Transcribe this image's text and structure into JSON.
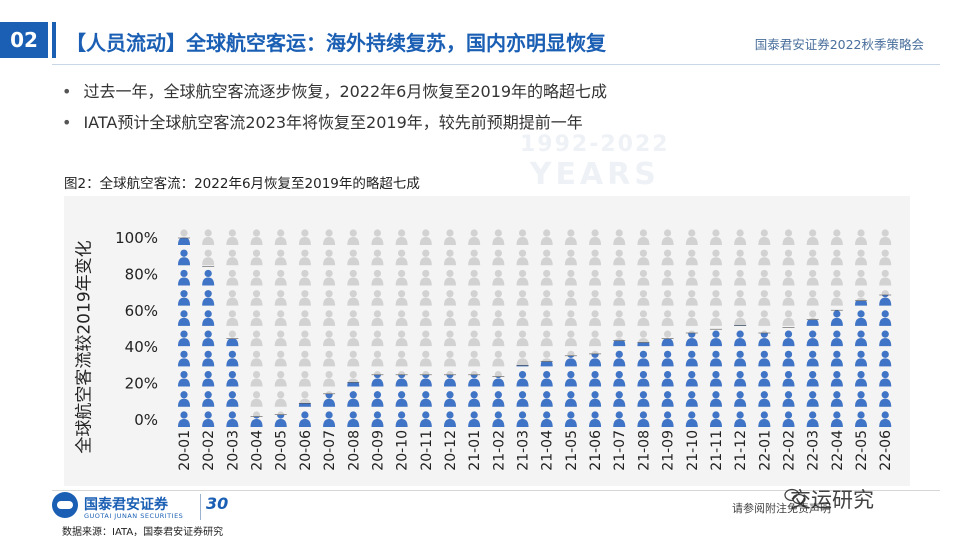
{
  "header": {
    "section_number": "02",
    "title": "【人员流动】全球航空客运：海外持续复苏，国内亦明显恢复",
    "conference": "国泰君安证券2022秋季策略会"
  },
  "bullets": [
    "过去一年，全球航空客流逐步恢复，2022年6月恢复至2019年的略超七成",
    "IATA预计全球航空客流2023年将恢复至2019年，较先前预期提前一年"
  ],
  "watermark": {
    "line1": "1992-2022",
    "line2": "YEARS"
  },
  "figure_caption": "图2：全球航空客流：2022年6月恢复至2019年的略超七成",
  "chart_data": {
    "type": "bar",
    "style": "pictograph (person icons, filled = recovered share, grey = remainder)",
    "categories": [
      "20-01",
      "20-02",
      "20-03",
      "20-04",
      "20-05",
      "20-06",
      "20-07",
      "20-08",
      "20-09",
      "20-10",
      "20-11",
      "20-12",
      "21-01",
      "21-02",
      "21-03",
      "21-04",
      "21-05",
      "21-06",
      "21-07",
      "21-08",
      "21-09",
      "21-10",
      "21-11",
      "21-12",
      "22-01",
      "22-02",
      "22-03",
      "22-04",
      "22-05",
      "22-06"
    ],
    "values": [
      100,
      85,
      47,
      6,
      7,
      13,
      18,
      24,
      28,
      28,
      28,
      28,
      28,
      27,
      33,
      35,
      38,
      39,
      46,
      45,
      47,
      50,
      52,
      54,
      50,
      53,
      57,
      62,
      67,
      70
    ],
    "ylabel": "全球航空客流较2019年变化",
    "yticks": [
      "0%",
      "20%",
      "40%",
      "60%",
      "80%",
      "100%"
    ],
    "ylim": [
      0,
      100
    ],
    "colors": {
      "filled": "#3f74c6",
      "empty": "#d2d2d2",
      "background": "#f4f4f4"
    }
  },
  "footer": {
    "logo_cn": "国泰君安证券",
    "logo_en": "GUOTAI JUNAN SECURITIES",
    "anniversary": "30",
    "source": "数据来源：IATA，国泰君安证券研究",
    "disclaimer": "请参阅附注免责声明",
    "wechat_name": "交运研究"
  }
}
